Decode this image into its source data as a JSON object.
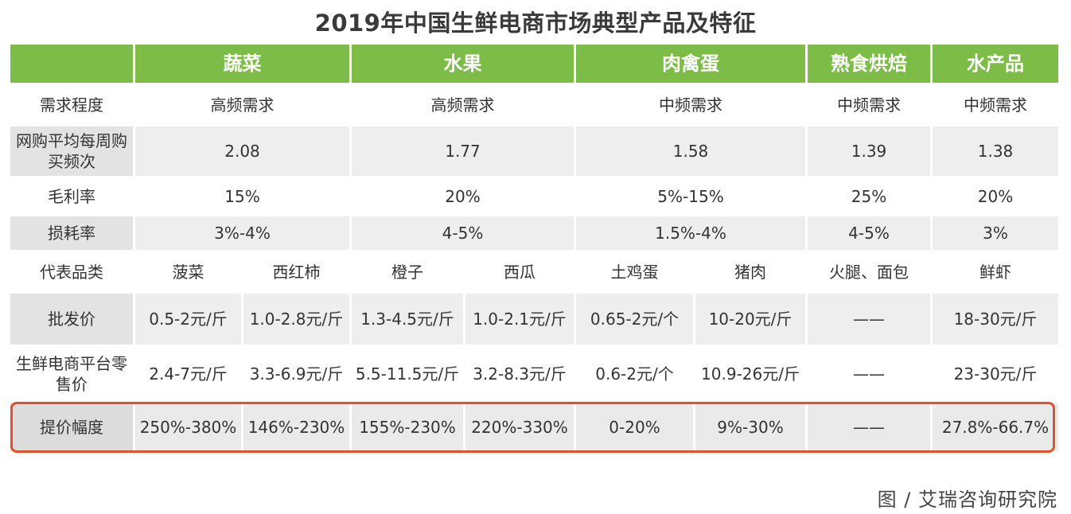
{
  "title": "2019年中国生鲜电商市场典型产品及特征",
  "header": [
    "",
    "蔬菜",
    "水果",
    "肉禽蛋",
    "熟食烘焙",
    "水产品"
  ],
  "rows": {
    "demand": {
      "label": "需求程度",
      "veg": "高频需求",
      "fruit": "高频需求",
      "meat": "中频需求",
      "deli": "中频需求",
      "aqua": "中频需求"
    },
    "freq": {
      "label": "网购平均每周购买频次",
      "veg": "2.08",
      "fruit": "1.77",
      "meat": "1.58",
      "deli": "1.39",
      "aqua": "1.38"
    },
    "margin": {
      "label": "毛利率",
      "veg": "15%",
      "fruit": "20%",
      "meat": "5%-15%",
      "deli": "25%",
      "aqua": "20%"
    },
    "loss": {
      "label": "损耗率",
      "veg": "3%-4%",
      "fruit": "4-5%",
      "meat": "1.5%-4%",
      "deli": "4-5%",
      "aqua": "3%"
    },
    "category": {
      "label": "代表品类",
      "c1": "菠菜",
      "c2": "西红柿",
      "c3": "橙子",
      "c4": "西瓜",
      "c5": "土鸡蛋",
      "c6": "猪肉",
      "c7": "火腿、面包",
      "c8": "鲜虾"
    },
    "wholesale": {
      "label": "批发价",
      "c1": "0.5-2元/斤",
      "c2": "1.0-2.8元/斤",
      "c3": "1.3-4.5元/斤",
      "c4": "1.0-2.1元/斤",
      "c5": "0.65-2元/个",
      "c6": "10-20元/斤",
      "c7": "——",
      "c8": "18-30元/斤"
    },
    "retail": {
      "label": "生鲜电商平台零售价",
      "c1": "2.4-7元/斤",
      "c2": "3.3-6.9元/斤",
      "c3": "5.5-11.5元/斤",
      "c4": "3.2-8.3元/斤",
      "c5": "0.6-2元/个",
      "c6": "10.9-26元/斤",
      "c7": "——",
      "c8": "23-30元/斤"
    },
    "markup": {
      "label": "提价幅度",
      "c1": "250%-380%",
      "c2": "146%-230%",
      "c3": "155%-230%",
      "c4": "220%-330%",
      "c5": "0-20%",
      "c6": "9%-30%",
      "c7": "——",
      "c8": "27.8%-66.7%"
    }
  },
  "source": "图 / 艾瑞咨询研究院",
  "colors": {
    "header_green": "#7dbd47",
    "highlight_border": "#e0522c"
  }
}
